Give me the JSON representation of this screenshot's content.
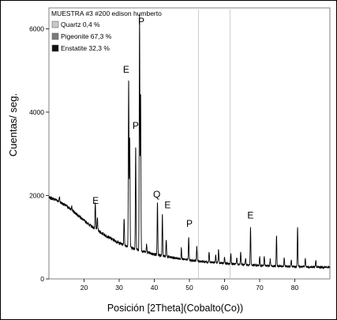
{
  "chart_data": {
    "type": "line",
    "title": "MUESTRA #3 #200 edison humberto",
    "xlabel": "Posición [2Theta](Cobalto(Co))",
    "ylabel": "Cuentas/ seg.",
    "xlim": [
      10,
      90
    ],
    "ylim": [
      0,
      6500
    ],
    "x_ticks": [
      "20",
      "30",
      "40",
      "50",
      "60",
      "70",
      "80"
    ],
    "y_ticks": [
      "0",
      "2000",
      "4000",
      "6000"
    ],
    "grid": false,
    "legend_position": "top-left",
    "legend": [
      {
        "label": "Quartz 0,4 %",
        "color": "#c8c8c8"
      },
      {
        "label": "Pigeonite 67,3 %",
        "color": "#7a7a7a"
      },
      {
        "label": "Enstatite 32,3 %",
        "color": "#111111"
      }
    ],
    "background_profile": {
      "x": [
        10,
        12,
        15,
        18,
        20,
        22,
        25,
        28,
        30,
        33,
        36,
        40,
        45,
        50,
        55,
        60,
        65,
        70,
        75,
        80,
        85,
        90
      ],
      "y": [
        1950,
        1900,
        1750,
        1550,
        1400,
        1270,
        1100,
        950,
        860,
        760,
        680,
        590,
        510,
        450,
        405,
        370,
        345,
        320,
        305,
        295,
        285,
        280
      ]
    },
    "peaks": [
      {
        "x": 13.0,
        "height": 120
      },
      {
        "x": 16.5,
        "height": 80
      },
      {
        "x": 23.2,
        "height": 650
      },
      {
        "x": 23.8,
        "height": 300
      },
      {
        "x": 31.4,
        "height": 650
      },
      {
        "x": 32.7,
        "height": 4050
      },
      {
        "x": 33.0,
        "height": 2600
      },
      {
        "x": 34.7,
        "height": 2500
      },
      {
        "x": 35.8,
        "height": 5650
      },
      {
        "x": 36.1,
        "height": 3800
      },
      {
        "x": 37.8,
        "height": 180
      },
      {
        "x": 40.9,
        "height": 1250
      },
      {
        "x": 42.3,
        "height": 1000
      },
      {
        "x": 43.4,
        "height": 400
      },
      {
        "x": 47.7,
        "height": 260
      },
      {
        "x": 49.8,
        "height": 550
      },
      {
        "x": 52.1,
        "height": 350
      },
      {
        "x": 55.6,
        "height": 250
      },
      {
        "x": 57.5,
        "height": 180
      },
      {
        "x": 58.3,
        "height": 320
      },
      {
        "x": 60.0,
        "height": 160
      },
      {
        "x": 61.8,
        "height": 240
      },
      {
        "x": 63.5,
        "height": 150
      },
      {
        "x": 64.6,
        "height": 280
      },
      {
        "x": 66.0,
        "height": 160
      },
      {
        "x": 67.4,
        "height": 900
      },
      {
        "x": 70.0,
        "height": 200
      },
      {
        "x": 71.3,
        "height": 250
      },
      {
        "x": 73.0,
        "height": 160
      },
      {
        "x": 74.8,
        "height": 750
      },
      {
        "x": 77.0,
        "height": 200
      },
      {
        "x": 79.0,
        "height": 160
      },
      {
        "x": 80.8,
        "height": 950
      },
      {
        "x": 83.0,
        "height": 200
      },
      {
        "x": 86.0,
        "height": 160
      }
    ],
    "annotations": [
      {
        "text": "E",
        "x": 23.3,
        "y": 1800
      },
      {
        "text": "E",
        "x": 32.0,
        "y": 4950
      },
      {
        "text": "P",
        "x": 34.7,
        "y": 3600
      },
      {
        "text": "P",
        "x": 36.3,
        "y": 6100
      },
      {
        "text": "Q",
        "x": 40.7,
        "y": 1950
      },
      {
        "text": "E",
        "x": 43.8,
        "y": 1700
      },
      {
        "text": "P",
        "x": 50.0,
        "y": 1250
      },
      {
        "text": "E",
        "x": 67.4,
        "y": 1450
      }
    ],
    "reference_lines": [
      52.6,
      61.6
    ],
    "line_color": "#000000"
  }
}
